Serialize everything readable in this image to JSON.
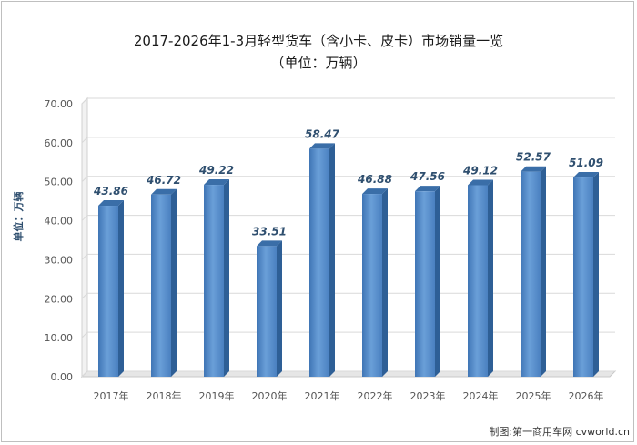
{
  "chart_data": {
    "type": "bar",
    "title": "2017-2026年1-3月轻型货车（含小卡、皮卡）市场销量一览",
    "subtitle": "（单位：万辆）",
    "ylabel": "单位：万辆",
    "categories": [
      "2017年",
      "2018年",
      "2019年",
      "2020年",
      "2021年",
      "2022年",
      "2023年",
      "2024年",
      "2025年",
      "2026年"
    ],
    "values": [
      43.86,
      46.72,
      49.22,
      33.51,
      58.47,
      46.88,
      47.56,
      49.12,
      52.57,
      51.09
    ],
    "value_labels": [
      "43.86",
      "46.72",
      "49.22",
      "33.51",
      "58.47",
      "46.88",
      "47.56",
      "49.12",
      "52.57",
      "51.09"
    ],
    "yticks": [
      "0.00",
      "10.00",
      "20.00",
      "30.00",
      "40.00",
      "50.00",
      "60.00",
      "70.00"
    ],
    "ylim": [
      0,
      70
    ],
    "grid": true,
    "bar_color": "#4f86c6",
    "bar_side_color": "#2e5f96",
    "bar_top_color": "#3a6ea8"
  },
  "credit": "制图:第一商用车网 cvworld.cn"
}
